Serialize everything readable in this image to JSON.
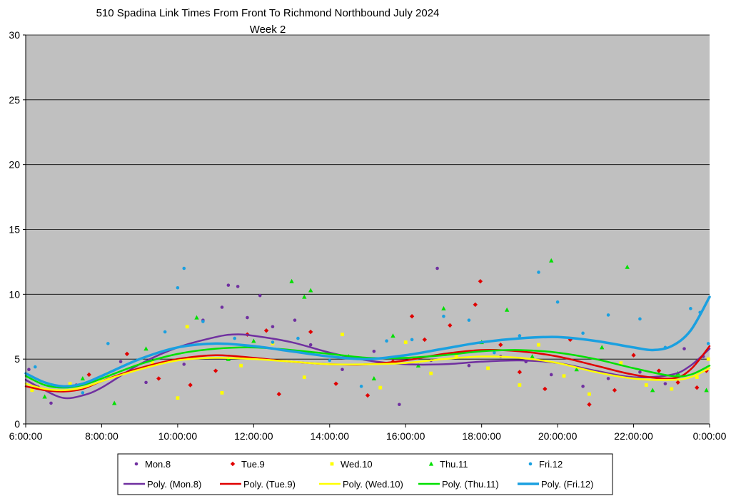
{
  "chart_data": {
    "type": "scatter",
    "title": "510 Spadina Link Times From Front To Richmond Northbound July 2024",
    "subtitle": "Week 2",
    "xlabel": "",
    "ylabel": "",
    "xlim": [
      "6:00:00",
      "0:00:00"
    ],
    "ylim": [
      0,
      30
    ],
    "x_tick_labels": [
      "6:00:00",
      "8:00:00",
      "10:00:00",
      "12:00:00",
      "14:00:00",
      "16:00:00",
      "18:00:00",
      "20:00:00",
      "22:00:00",
      "0:00:00"
    ],
    "y_tick_labels": [
      "0",
      "5",
      "10",
      "15",
      "20",
      "25",
      "30"
    ],
    "grid": "horizontal",
    "plot_background": "#c0c0c0",
    "legend_position": "bottom",
    "series": [
      {
        "name": "Mon.8",
        "marker": "circle",
        "color": "#7030a0",
        "trend_name": "Poly. (Mon.8)",
        "trend_points": [
          [
            "6:00",
            3.4
          ],
          [
            "6:30",
            2.6
          ],
          [
            "7:00",
            2.0
          ],
          [
            "7:30",
            2.2
          ],
          [
            "8:00",
            2.8
          ],
          [
            "9:00",
            4.6
          ],
          [
            "10:00",
            5.9
          ],
          [
            "11:00",
            6.7
          ],
          [
            "11:30",
            6.9
          ],
          [
            "12:00",
            6.8
          ],
          [
            "13:00",
            6.3
          ],
          [
            "14:00",
            5.5
          ],
          [
            "15:00",
            4.9
          ],
          [
            "16:00",
            4.6
          ],
          [
            "17:00",
            4.6
          ],
          [
            "18:00",
            4.8
          ],
          [
            "19:00",
            4.9
          ],
          [
            "20:00",
            4.7
          ],
          [
            "21:00",
            4.1
          ],
          [
            "22:00",
            3.6
          ],
          [
            "23:00",
            3.8
          ],
          [
            "23:30",
            4.5
          ],
          [
            "0:00",
            5.8
          ]
        ],
        "points": [
          [
            "6:05",
            4.2
          ],
          [
            "6:40",
            1.6
          ],
          [
            "7:20",
            3.0
          ],
          [
            "8:30",
            4.8
          ],
          [
            "9:10",
            3.2
          ],
          [
            "10:10",
            4.6
          ],
          [
            "10:40",
            8.0
          ],
          [
            "11:10",
            9.0
          ],
          [
            "11:20",
            10.7
          ],
          [
            "11:35",
            10.6
          ],
          [
            "11:50",
            8.2
          ],
          [
            "12:10",
            9.9
          ],
          [
            "12:30",
            7.5
          ],
          [
            "13:05",
            8.0
          ],
          [
            "13:30",
            6.1
          ],
          [
            "14:20",
            4.2
          ],
          [
            "15:10",
            5.6
          ],
          [
            "15:50",
            1.5
          ],
          [
            "16:40",
            4.9
          ],
          [
            "16:50",
            12.0
          ],
          [
            "17:40",
            4.5
          ],
          [
            "18:30",
            5.2
          ],
          [
            "19:10",
            4.8
          ],
          [
            "19:50",
            3.8
          ],
          [
            "20:40",
            2.9
          ],
          [
            "21:20",
            3.5
          ],
          [
            "22:10",
            4.0
          ],
          [
            "22:50",
            3.1
          ],
          [
            "23:20",
            5.8
          ],
          [
            "23:50",
            5.2
          ]
        ]
      },
      {
        "name": "Tue.9",
        "marker": "diamond",
        "color": "#e00000",
        "trend_name": "Poly. (Tue.9)",
        "trend_points": [
          [
            "6:00",
            2.9
          ],
          [
            "6:30",
            2.6
          ],
          [
            "7:00",
            2.5
          ],
          [
            "7:30",
            2.7
          ],
          [
            "8:00",
            3.3
          ],
          [
            "9:00",
            4.3
          ],
          [
            "10:00",
            5.0
          ],
          [
            "11:00",
            5.3
          ],
          [
            "12:00",
            5.1
          ],
          [
            "13:00",
            4.8
          ],
          [
            "14:00",
            4.6
          ],
          [
            "15:00",
            4.6
          ],
          [
            "16:00",
            4.9
          ],
          [
            "17:00",
            5.4
          ],
          [
            "18:00",
            5.7
          ],
          [
            "19:00",
            5.6
          ],
          [
            "20:00",
            5.2
          ],
          [
            "21:00",
            4.5
          ],
          [
            "22:00",
            3.8
          ],
          [
            "23:00",
            3.5
          ],
          [
            "23:30",
            4.2
          ],
          [
            "0:00",
            6.0
          ]
        ],
        "points": [
          [
            "6:20",
            2.8
          ],
          [
            "7:40",
            3.8
          ],
          [
            "8:40",
            5.4
          ],
          [
            "9:30",
            3.5
          ],
          [
            "10:20",
            3.0
          ],
          [
            "11:00",
            4.1
          ],
          [
            "11:50",
            6.9
          ],
          [
            "12:20",
            7.2
          ],
          [
            "12:40",
            2.3
          ],
          [
            "13:30",
            7.1
          ],
          [
            "14:10",
            3.1
          ],
          [
            "15:00",
            2.2
          ],
          [
            "15:40",
            4.8
          ],
          [
            "16:10",
            8.3
          ],
          [
            "16:30",
            6.5
          ],
          [
            "17:10",
            7.6
          ],
          [
            "17:50",
            9.2
          ],
          [
            "17:58",
            11.0
          ],
          [
            "18:30",
            6.1
          ],
          [
            "19:00",
            4.0
          ],
          [
            "19:40",
            2.7
          ],
          [
            "20:20",
            6.5
          ],
          [
            "20:50",
            1.5
          ],
          [
            "21:30",
            2.6
          ],
          [
            "22:00",
            5.3
          ],
          [
            "22:40",
            4.1
          ],
          [
            "23:10",
            3.2
          ],
          [
            "23:40",
            2.8
          ],
          [
            "23:55",
            4.1
          ]
        ]
      },
      {
        "name": "Wed.10",
        "marker": "square",
        "color": "#ffff00",
        "trend_name": "Poly. (Wed.10)",
        "trend_points": [
          [
            "6:00",
            3.1
          ],
          [
            "6:30",
            2.7
          ],
          [
            "7:00",
            2.6
          ],
          [
            "7:30",
            2.8
          ],
          [
            "8:00",
            3.3
          ],
          [
            "9:00",
            4.2
          ],
          [
            "10:00",
            4.9
          ],
          [
            "11:00",
            5.1
          ],
          [
            "12:00",
            5.0
          ],
          [
            "13:00",
            4.8
          ],
          [
            "14:00",
            4.6
          ],
          [
            "15:00",
            4.6
          ],
          [
            "16:00",
            4.7
          ],
          [
            "17:00",
            5.0
          ],
          [
            "18:00",
            5.2
          ],
          [
            "19:00",
            5.1
          ],
          [
            "20:00",
            4.7
          ],
          [
            "21:00",
            4.0
          ],
          [
            "22:00",
            3.5
          ],
          [
            "23:00",
            3.4
          ],
          [
            "23:30",
            3.6
          ],
          [
            "0:00",
            4.3
          ]
        ],
        "points": [
          [
            "6:10",
            2.6
          ],
          [
            "7:10",
            3.1
          ],
          [
            "8:10",
            3.9
          ],
          [
            "9:20",
            4.7
          ],
          [
            "10:00",
            2.0
          ],
          [
            "10:15",
            7.5
          ],
          [
            "11:10",
            2.4
          ],
          [
            "11:40",
            4.5
          ],
          [
            "12:30",
            6.2
          ],
          [
            "13:20",
            3.6
          ],
          [
            "14:20",
            6.9
          ],
          [
            "15:20",
            2.8
          ],
          [
            "16:00",
            6.3
          ],
          [
            "16:40",
            3.9
          ],
          [
            "17:20",
            5.2
          ],
          [
            "18:10",
            4.3
          ],
          [
            "19:00",
            3.0
          ],
          [
            "19:30",
            6.1
          ],
          [
            "20:10",
            3.7
          ],
          [
            "20:50",
            2.3
          ],
          [
            "21:40",
            4.7
          ],
          [
            "22:20",
            3.0
          ],
          [
            "23:00",
            2.7
          ],
          [
            "23:40",
            3.6
          ],
          [
            "23:58",
            5.0
          ]
        ]
      },
      {
        "name": "Thu.11",
        "marker": "triangle",
        "color": "#00e000",
        "trend_name": "Poly. (Thu.11)",
        "trend_points": [
          [
            "6:00",
            3.7
          ],
          [
            "6:30",
            3.0
          ],
          [
            "7:00",
            2.8
          ],
          [
            "7:30",
            3.0
          ],
          [
            "8:00",
            3.5
          ],
          [
            "9:00",
            4.6
          ],
          [
            "10:00",
            5.4
          ],
          [
            "11:00",
            5.8
          ],
          [
            "12:00",
            5.9
          ],
          [
            "13:00",
            5.7
          ],
          [
            "14:00",
            5.4
          ],
          [
            "15:00",
            5.1
          ],
          [
            "16:00",
            5.1
          ],
          [
            "17:00",
            5.3
          ],
          [
            "18:00",
            5.6
          ],
          [
            "19:00",
            5.7
          ],
          [
            "20:00",
            5.5
          ],
          [
            "21:00",
            5.0
          ],
          [
            "22:00",
            4.3
          ],
          [
            "23:00",
            3.7
          ],
          [
            "23:30",
            3.8
          ],
          [
            "0:00",
            4.5
          ]
        ],
        "points": [
          [
            "6:30",
            2.1
          ],
          [
            "7:30",
            3.5
          ],
          [
            "8:20",
            1.6
          ],
          [
            "9:10",
            5.8
          ],
          [
            "10:30",
            8.2
          ],
          [
            "11:20",
            5.0
          ],
          [
            "12:00",
            6.4
          ],
          [
            "13:00",
            11.0
          ],
          [
            "13:20",
            9.8
          ],
          [
            "13:30",
            10.3
          ],
          [
            "14:30",
            5.2
          ],
          [
            "15:10",
            3.5
          ],
          [
            "15:40",
            6.8
          ],
          [
            "16:20",
            4.5
          ],
          [
            "17:00",
            8.9
          ],
          [
            "18:00",
            6.3
          ],
          [
            "18:40",
            8.8
          ],
          [
            "19:20",
            5.2
          ],
          [
            "19:50",
            12.6
          ],
          [
            "20:30",
            4.2
          ],
          [
            "21:10",
            5.9
          ],
          [
            "21:50",
            12.1
          ],
          [
            "22:30",
            2.6
          ],
          [
            "23:10",
            3.9
          ],
          [
            "23:55",
            2.6
          ]
        ]
      },
      {
        "name": "Fri.12",
        "marker": "circle",
        "color": "#1aa0e0",
        "trend_name": "Poly. (Fri.12)",
        "trend_points": [
          [
            "6:00",
            3.9
          ],
          [
            "6:30",
            3.2
          ],
          [
            "7:00",
            2.9
          ],
          [
            "7:30",
            3.1
          ],
          [
            "8:00",
            3.7
          ],
          [
            "9:00",
            5.0
          ],
          [
            "10:00",
            5.9
          ],
          [
            "11:00",
            6.2
          ],
          [
            "12:00",
            6.0
          ],
          [
            "13:00",
            5.6
          ],
          [
            "14:00",
            5.2
          ],
          [
            "15:00",
            5.0
          ],
          [
            "16:00",
            5.3
          ],
          [
            "17:00",
            5.8
          ],
          [
            "18:00",
            6.3
          ],
          [
            "19:00",
            6.6
          ],
          [
            "20:00",
            6.7
          ],
          [
            "21:00",
            6.4
          ],
          [
            "22:00",
            5.9
          ],
          [
            "22:30",
            5.7
          ],
          [
            "23:00",
            6.0
          ],
          [
            "23:30",
            7.2
          ],
          [
            "0:00",
            9.8
          ]
        ],
        "points": [
          [
            "6:15",
            4.4
          ],
          [
            "7:30",
            2.4
          ],
          [
            "8:10",
            6.2
          ],
          [
            "9:40",
            7.1
          ],
          [
            "10:00",
            10.5
          ],
          [
            "10:10",
            12.0
          ],
          [
            "10:40",
            7.9
          ],
          [
            "11:30",
            6.6
          ],
          [
            "12:30",
            6.3
          ],
          [
            "13:10",
            6.6
          ],
          [
            "14:00",
            4.9
          ],
          [
            "14:50",
            2.9
          ],
          [
            "15:30",
            6.4
          ],
          [
            "16:10",
            6.5
          ],
          [
            "17:00",
            8.3
          ],
          [
            "17:40",
            8.0
          ],
          [
            "18:20",
            5.5
          ],
          [
            "19:00",
            6.8
          ],
          [
            "19:30",
            11.7
          ],
          [
            "20:00",
            9.4
          ],
          [
            "20:40",
            7.0
          ],
          [
            "21:20",
            8.4
          ],
          [
            "22:10",
            8.1
          ],
          [
            "22:50",
            5.9
          ],
          [
            "23:30",
            8.9
          ],
          [
            "23:45",
            8.6
          ],
          [
            "23:58",
            6.2
          ]
        ]
      }
    ]
  }
}
